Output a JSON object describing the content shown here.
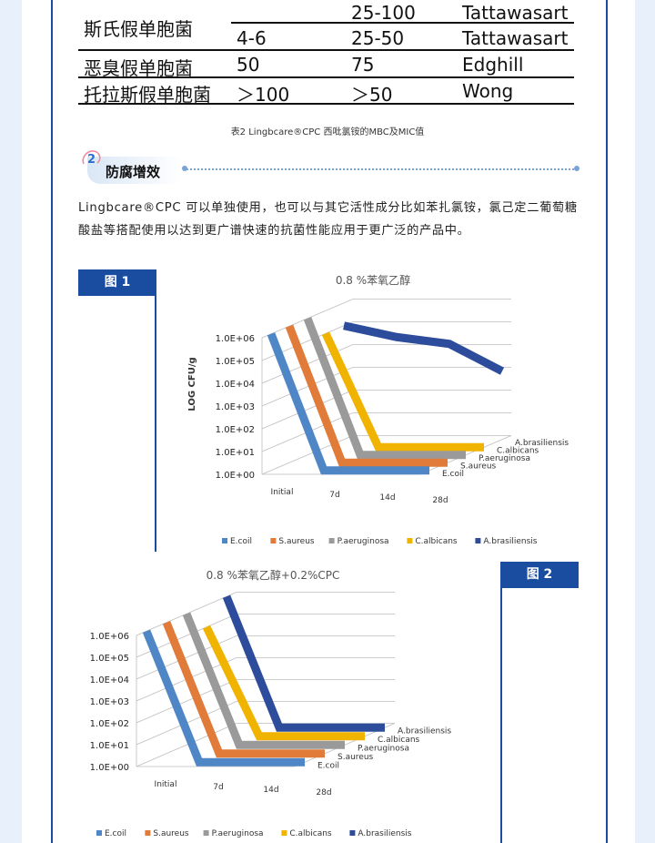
{
  "table": {
    "rows": [
      {
        "organism": "",
        "mbc": "",
        "mic": "25-100",
        "source": "Tattawasart"
      },
      {
        "organism": "斯氏假单胞菌",
        "mbc": "4-6",
        "mic": "25-50",
        "source": "Tattawasart"
      },
      {
        "organism": "恶臭假单胞菌",
        "mbc": "50",
        "mic": "75",
        "source": "Edghill"
      },
      {
        "organism": "托拉斯假单胞菌",
        "mbc": "＞100",
        "mic": "＞50",
        "source": "Wong"
      }
    ],
    "caption": "表2 Lingbcare®CPC 西吡氯铵的MBC及MIC值"
  },
  "section": {
    "number": "2",
    "title": "防腐增效",
    "paragraph": "Lingbcare®CPC 可以单独使用，也可以与其它活性成分比如苯扎氯铵，氯己定二葡萄糖酸盐等搭配使用以达到更广谱快速的抗菌性能应用于更广泛的产品中。"
  },
  "colors": {
    "accent": "#1a4da0",
    "series": [
      "#4f86c6",
      "#e07b39",
      "#9a9a9a",
      "#f0b400",
      "#2d4d9c"
    ]
  },
  "chart_data": [
    {
      "type": "3d-line",
      "tag": "图 1",
      "title": "0.8 %苯氧乙醇",
      "ylabel": "LOG CFU/g",
      "yticks": [
        "1.0E+00",
        "1.0E+01",
        "1.0E+02",
        "1.0E+03",
        "1.0E+04",
        "1.0E+05",
        "1.0E+06"
      ],
      "x": [
        "Initial",
        "7d",
        "14d",
        "28d"
      ],
      "depth": [
        "E.coil",
        "S.aureus",
        "P.aeruginosa",
        "C.albicans",
        "A.brasiliensis"
      ],
      "series": [
        {
          "name": "E.coil",
          "values": [
            6,
            0,
            0,
            0
          ]
        },
        {
          "name": "S.aureus",
          "values": [
            6,
            0,
            0,
            0
          ]
        },
        {
          "name": "P.aeruginosa",
          "values": [
            6,
            0,
            0,
            0
          ]
        },
        {
          "name": "C.albicans",
          "values": [
            5,
            0,
            0,
            0
          ]
        },
        {
          "name": "A.brasiliensis",
          "values": [
            5,
            4.5,
            4.2,
            3
          ]
        }
      ]
    },
    {
      "type": "3d-line",
      "tag": "图 2",
      "title": "0.8 %苯氧乙醇+0.2%CPC",
      "ylabel": "",
      "yticks": [
        "1.0E+00",
        "1.0E+01",
        "1.0E+02",
        "1.0E+03",
        "1.0E+04",
        "1.0E+05",
        "1.0E+06"
      ],
      "x": [
        "Initial",
        "7d",
        "14d",
        "28d"
      ],
      "depth": [
        "E.coil",
        "S.aureus",
        "P.aeruginosa",
        "C.albicans",
        "A.brasiliensis"
      ],
      "series": [
        {
          "name": "E.coil",
          "values": [
            6,
            0,
            0,
            0
          ]
        },
        {
          "name": "S.aureus",
          "values": [
            6,
            0,
            0,
            0
          ]
        },
        {
          "name": "P.aeruginosa",
          "values": [
            6,
            0,
            0,
            0
          ]
        },
        {
          "name": "C.albicans",
          "values": [
            5,
            0,
            0,
            0
          ]
        },
        {
          "name": "A.brasiliensis",
          "values": [
            6,
            0,
            0,
            0
          ]
        }
      ]
    }
  ]
}
